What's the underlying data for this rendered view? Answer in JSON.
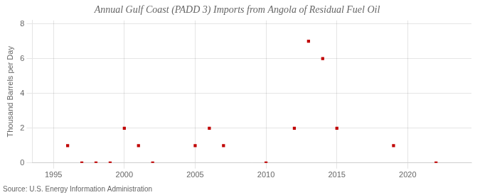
{
  "chart_data": {
    "type": "scatter",
    "title": "Annual Gulf Coast (PADD 3) Imports from Angola of Residual Fuel Oil",
    "ylabel": "Thousand Barrels per Day",
    "annotations": [
      "Source: U.S. Energy Information Administration"
    ],
    "x": [
      1996,
      1997,
      1998,
      1999,
      2000,
      2001,
      2002,
      2005,
      2006,
      2007,
      2010,
      2012,
      2013,
      2014,
      2015,
      2019,
      2022
    ],
    "values": [
      1,
      0,
      0,
      0,
      2,
      1,
      0,
      1,
      2,
      1,
      0,
      2,
      7,
      6,
      2,
      1,
      0
    ],
    "color": "#c00000",
    "marker": "square",
    "xlim": [
      1993.5,
      2024.5
    ],
    "xticks": [
      1995,
      2000,
      2005,
      2010,
      2015,
      2020
    ],
    "ylim": [
      0,
      8.2
    ],
    "yticks": [
      0,
      2,
      4,
      6,
      8
    ],
    "grid": true
  }
}
